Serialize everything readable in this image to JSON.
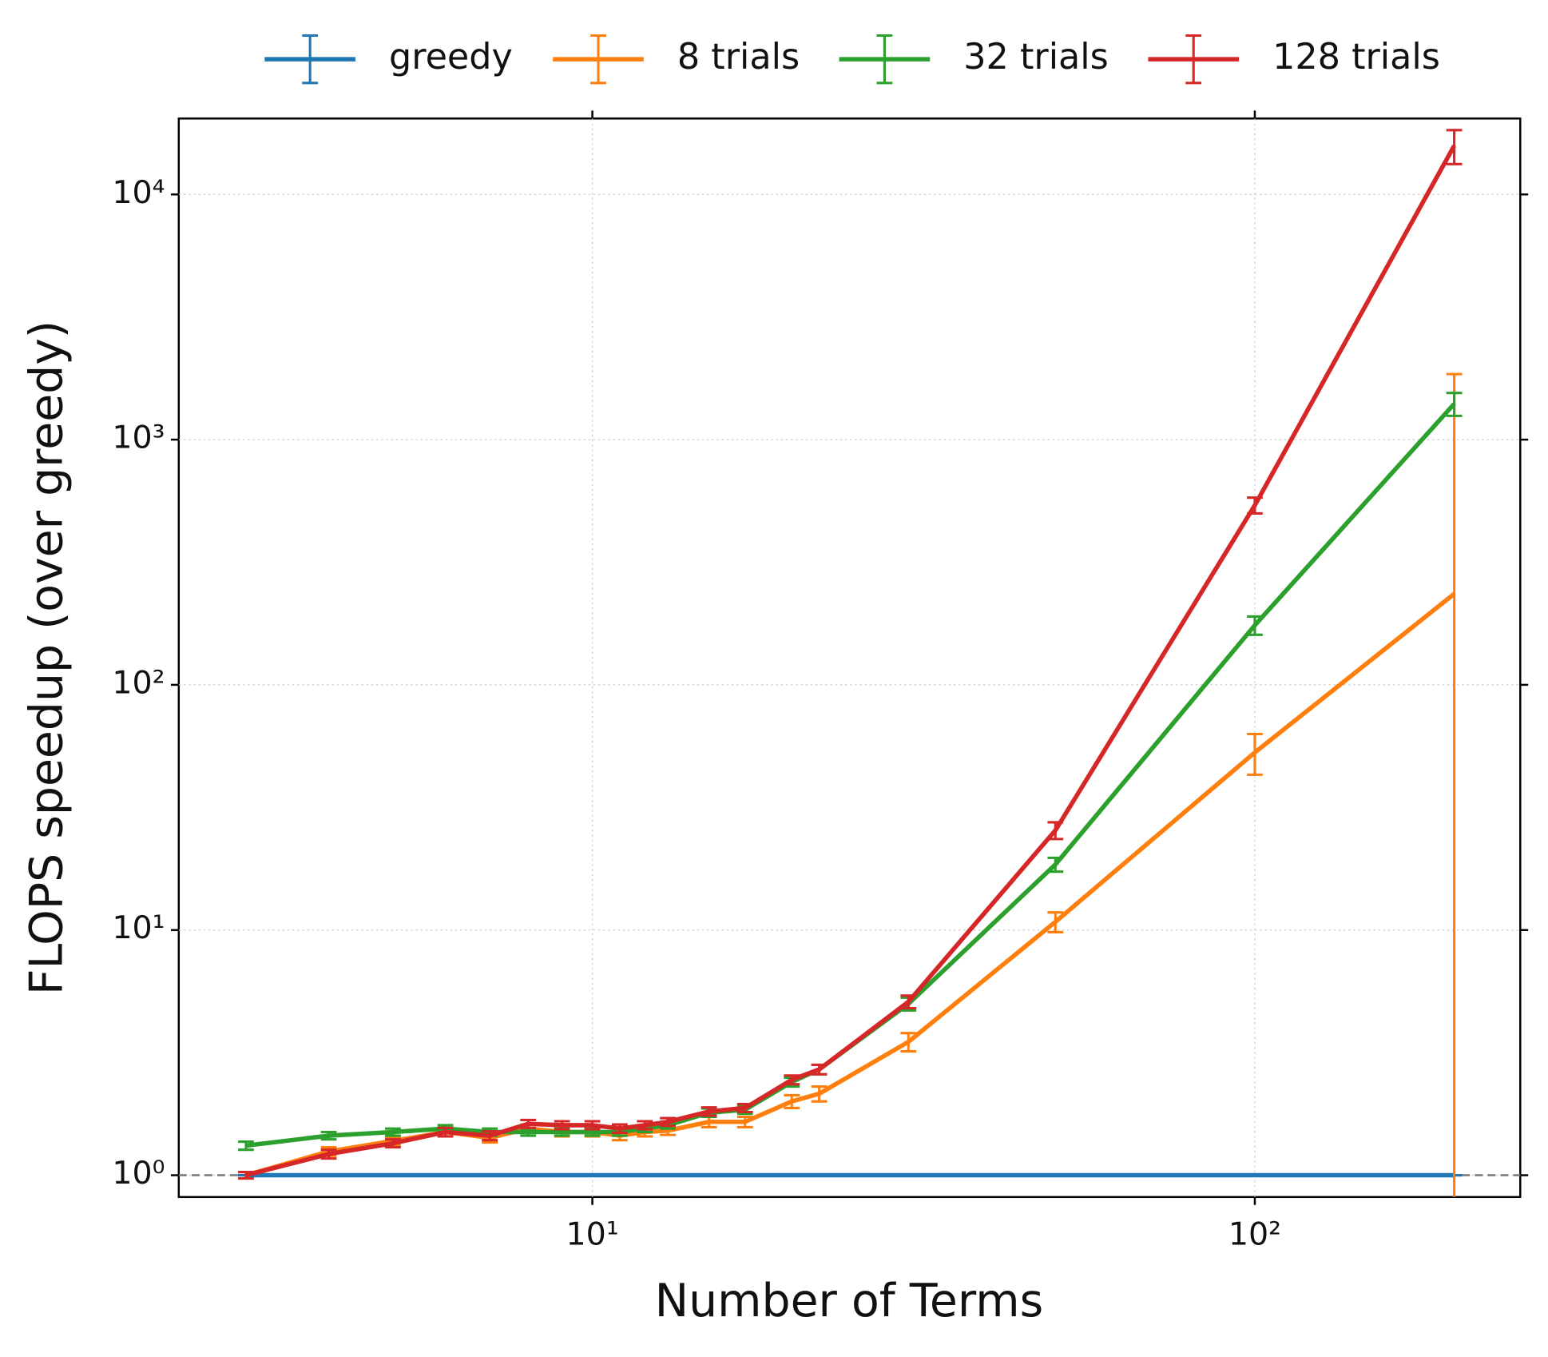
{
  "chart_data": {
    "type": "line",
    "log_x": true,
    "log_y": true,
    "grid": true,
    "xlabel": "Number of Terms",
    "ylabel": "FLOPS speedup (over greedy)",
    "legend": "top",
    "x": [
      3,
      4,
      5,
      6,
      7,
      8,
      9,
      10,
      11,
      12,
      13,
      15,
      17,
      20,
      22,
      30,
      50,
      100,
      200
    ],
    "xlim": [
      2.375,
      251.6
    ],
    "ylim": [
      0.815,
      20400
    ],
    "xticks": [
      {
        "value": 10,
        "label": "10¹"
      },
      {
        "value": 100,
        "label": "10²"
      }
    ],
    "yticks": [
      {
        "value": 1,
        "label": "10⁰"
      },
      {
        "value": 10,
        "label": "10¹"
      },
      {
        "value": 100,
        "label": "10²"
      },
      {
        "value": 1000,
        "label": "10³"
      },
      {
        "value": 10000,
        "label": "10⁴"
      }
    ],
    "reference_line": 1,
    "series": [
      {
        "name": "greedy",
        "color": "#1f77b4",
        "values": [
          1,
          1,
          1,
          1,
          1,
          1,
          1,
          1,
          1,
          1,
          1,
          1,
          1,
          1,
          1,
          1,
          1,
          1,
          1
        ],
        "errors": [
          0,
          0,
          0,
          0,
          0,
          0,
          0,
          0,
          0,
          0,
          0,
          0,
          0,
          0,
          0,
          0,
          0,
          0,
          0
        ]
      },
      {
        "name": "8 trials",
        "color": "#ff7f0e",
        "values": [
          1.0,
          1.25,
          1.38,
          1.5,
          1.42,
          1.55,
          1.5,
          1.5,
          1.45,
          1.5,
          1.52,
          1.65,
          1.65,
          2.0,
          2.15,
          3.5,
          10.8,
          53,
          235
        ],
        "errors": [
          0.03,
          0.05,
          0.05,
          0.06,
          0.06,
          0.06,
          0.06,
          0.06,
          0.06,
          0.06,
          0.06,
          0.08,
          0.08,
          0.12,
          0.15,
          0.3,
          1.0,
          10,
          1615
        ]
      },
      {
        "name": "32 trials",
        "color": "#2ca02c",
        "values": [
          1.32,
          1.45,
          1.5,
          1.55,
          1.5,
          1.5,
          1.5,
          1.5,
          1.5,
          1.55,
          1.6,
          1.8,
          1.85,
          2.4,
          2.7,
          5.0,
          18.5,
          175,
          1400
        ],
        "errors": [
          0.05,
          0.05,
          0.05,
          0.05,
          0.05,
          0.05,
          0.05,
          0.05,
          0.05,
          0.05,
          0.05,
          0.07,
          0.07,
          0.1,
          0.12,
          0.3,
          1.2,
          15,
          150
        ]
      },
      {
        "name": "128 trials",
        "color": "#d62728",
        "values": [
          1.0,
          1.22,
          1.35,
          1.5,
          1.45,
          1.62,
          1.6,
          1.6,
          1.55,
          1.6,
          1.65,
          1.82,
          1.88,
          2.45,
          2.7,
          5.1,
          25.5,
          540,
          15800
        ],
        "errors": [
          0.03,
          0.05,
          0.05,
          0.06,
          0.06,
          0.06,
          0.06,
          0.06,
          0.06,
          0.06,
          0.06,
          0.07,
          0.07,
          0.1,
          0.12,
          0.3,
          2,
          40,
          2500
        ]
      }
    ]
  }
}
